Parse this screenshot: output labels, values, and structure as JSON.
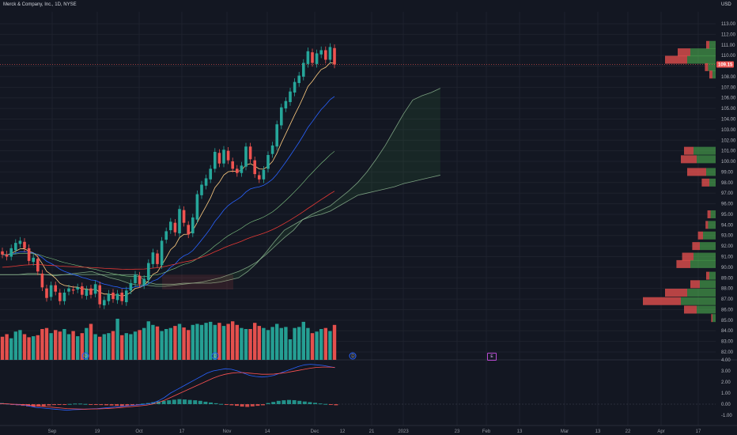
{
  "header": {
    "symbol_title": "Merck & Company, Inc., 1D, NYSE",
    "currency": "USD"
  },
  "price_axis": {
    "labels": [
      "113.00",
      "112.00",
      "111.00",
      "110.00",
      "108.00",
      "107.00",
      "106.00",
      "105.00",
      "104.00",
      "103.00",
      "102.00",
      "101.00",
      "100.00",
      "99.00",
      "98.00",
      "97.00",
      "96.00",
      "95.00",
      "94.00",
      "93.00",
      "92.00",
      "91.00",
      "90.00",
      "89.00",
      "88.00",
      "87.00",
      "86.00",
      "85.00",
      "84.00",
      "83.00",
      "82.00"
    ],
    "current_price": "109.15",
    "current_price_value": 109.15
  },
  "osc_axis": {
    "labels": [
      "4.00",
      "3.00",
      "2.00",
      "1.00",
      "0.00",
      "-1.00"
    ]
  },
  "time_axis": {
    "labels": [
      "Sep",
      "19",
      "Oct",
      "17",
      "Nov",
      "14",
      "Dec",
      "12",
      "21",
      "2023",
      "23",
      "Feb",
      "13",
      "Mar",
      "13",
      "22",
      "Apr",
      "17"
    ]
  },
  "event_badges": {
    "dividend": "D",
    "earnings": "E"
  },
  "colors": {
    "background": "#131722",
    "up": "#26a69a",
    "down": "#ef5350",
    "ema_fast": "#ffcc80",
    "ema_mid": "#2962ff",
    "ema_slow": "#81c784",
    "ma_long": "#e53935",
    "macd": "#2962ff",
    "signal": "#ff5252"
  },
  "chart_data": {
    "type": "candlestick",
    "price_range": [
      81.5,
      113.5
    ],
    "candles": [
      [
        91.5,
        91.2
      ],
      [
        91.2,
        91.0
      ],
      [
        91.0,
        91.8
      ],
      [
        91.6,
        92.3
      ],
      [
        92.2,
        92.5
      ],
      [
        92.4,
        91.8
      ],
      [
        91.8,
        90.6
      ],
      [
        90.5,
        90.9
      ],
      [
        90.8,
        89.6
      ],
      [
        89.4,
        88.1
      ],
      [
        88.0,
        87.1
      ],
      [
        87.2,
        88.3
      ],
      [
        88.3,
        87.7
      ],
      [
        87.6,
        86.8
      ],
      [
        86.8,
        87.6
      ],
      [
        87.7,
        88.0
      ],
      [
        87.9,
        87.8
      ],
      [
        87.9,
        88.1
      ],
      [
        88.2,
        87.4
      ],
      [
        87.3,
        87.9
      ],
      [
        88.0,
        87.4
      ],
      [
        87.5,
        88.4
      ],
      [
        88.3,
        86.5
      ],
      [
        86.4,
        86.9
      ],
      [
        86.8,
        87.5
      ],
      [
        87.6,
        87.0
      ],
      [
        86.9,
        87.5
      ],
      [
        87.6,
        86.8
      ],
      [
        86.7,
        87.8
      ],
      [
        87.8,
        88.5
      ],
      [
        88.5,
        89.3
      ],
      [
        89.2,
        88.4
      ],
      [
        88.3,
        88.9
      ],
      [
        88.8,
        90.4
      ],
      [
        90.3,
        91.4
      ],
      [
        91.3,
        90.3
      ],
      [
        90.2,
        92.5
      ],
      [
        92.6,
        93.4
      ],
      [
        93.5,
        94.3
      ],
      [
        94.2,
        93.3
      ],
      [
        93.2,
        95.5
      ],
      [
        95.4,
        94.2
      ],
      [
        94.0,
        93.1
      ],
      [
        93.2,
        94.7
      ],
      [
        94.5,
        96.9
      ],
      [
        96.8,
        97.8
      ],
      [
        97.7,
        98.4
      ],
      [
        98.3,
        99.3
      ],
      [
        99.3,
        100.9
      ],
      [
        100.8,
        99.8
      ],
      [
        99.8,
        101.1
      ],
      [
        101.0,
        100.1
      ],
      [
        100.0,
        99.3
      ],
      [
        99.3,
        98.9
      ],
      [
        98.9,
        99.6
      ],
      [
        99.5,
        101.4
      ],
      [
        101.4,
        100.2
      ],
      [
        100.1,
        98.8
      ],
      [
        98.7,
        98.3
      ],
      [
        98.3,
        99.2
      ],
      [
        99.3,
        100.6
      ],
      [
        100.7,
        101.5
      ],
      [
        101.4,
        103.5
      ],
      [
        103.4,
        105.1
      ],
      [
        105.0,
        105.7
      ],
      [
        105.6,
        106.6
      ],
      [
        106.5,
        107.5
      ],
      [
        107.4,
        108.1
      ],
      [
        108.0,
        109.3
      ],
      [
        109.2,
        110.4
      ],
      [
        110.3,
        109.3
      ],
      [
        109.2,
        110.2
      ],
      [
        110.1,
        110.5
      ],
      [
        110.5,
        109.6
      ],
      [
        109.6,
        110.8
      ],
      [
        110.7,
        109.15
      ]
    ],
    "volume_relative": [
      0.45,
      0.5,
      0.42,
      0.55,
      0.58,
      0.5,
      0.44,
      0.46,
      0.48,
      0.6,
      0.62,
      0.52,
      0.58,
      0.55,
      0.6,
      0.5,
      0.56,
      0.46,
      0.52,
      0.62,
      0.7,
      0.5,
      0.45,
      0.5,
      0.52,
      0.56,
      0.8,
      0.48,
      0.52,
      0.5,
      0.55,
      0.58,
      0.62,
      0.75,
      0.68,
      0.65,
      0.56,
      0.6,
      0.62,
      0.66,
      0.7,
      0.63,
      0.58,
      0.68,
      0.7,
      0.68,
      0.72,
      0.74,
      0.68,
      0.72,
      0.66,
      0.7,
      0.75,
      0.68,
      0.62,
      0.6,
      0.6,
      0.72,
      0.66,
      0.62,
      0.58,
      0.64,
      0.7,
      0.62,
      0.64,
      0.4,
      0.62,
      0.64,
      0.74,
      0.62,
      0.52,
      0.55,
      0.6,
      0.62,
      0.56,
      0.68
    ],
    "ichimoku": {
      "span_a": [
        89.3,
        89.3,
        89.3,
        89.4,
        89.4,
        89.3,
        89.2,
        89.3,
        89.4,
        89.5,
        89.6,
        89.3,
        89.0,
        88.8,
        88.5,
        88.3,
        88.3,
        88.2,
        88.2,
        88.3,
        88.4,
        88.5,
        88.6,
        88.8,
        89.0,
        89.3,
        89.6,
        90.0,
        90.5,
        91.2,
        92.0,
        92.8,
        93.5,
        94.5,
        95.0,
        95.4,
        95.8,
        96.5,
        97.2,
        98.0,
        99.0,
        100.2,
        101.5,
        103.0,
        104.5,
        105.8,
        106.2,
        106.5,
        106.9
      ],
      "span_b": [
        89.3,
        89.3,
        89.3,
        89.3,
        89.3,
        89.3,
        89.3,
        89.3,
        89.3,
        89.3,
        89.3,
        89.3,
        89.3,
        89.3,
        89.3,
        89.3,
        88.6,
        88.4,
        88.4,
        88.4,
        88.5,
        88.5,
        88.5,
        88.5,
        88.6,
        88.8,
        89.0,
        89.6,
        90.4,
        91.4,
        92.5,
        93.5,
        94.0,
        94.5,
        94.8,
        95.0,
        95.3,
        95.8,
        96.3,
        96.8,
        97.0,
        97.2,
        97.4,
        97.6,
        97.9,
        98.1,
        98.3,
        98.5,
        98.7
      ]
    },
    "macd_values": [
      0.05,
      0.03,
      -0.02,
      -0.05,
      -0.08,
      -0.2,
      -0.3,
      -0.35,
      -0.4,
      -0.45,
      -0.5,
      -0.55,
      -0.5,
      -0.48,
      -0.45,
      -0.42,
      -0.4,
      -0.35,
      -0.3,
      -0.25,
      -0.2,
      -0.15,
      -0.1,
      -0.05,
      0.0,
      0.1,
      0.3,
      0.6,
      1.0,
      1.3,
      1.6,
      1.9,
      2.2,
      2.5,
      2.8,
      3.0,
      3.1,
      3.2,
      3.15,
      3.0,
      2.8,
      2.6,
      2.5,
      2.45,
      2.5,
      2.6,
      2.8,
      3.0,
      3.2,
      3.4,
      3.55,
      3.6,
      3.55,
      3.5,
      3.4,
      3.3
    ],
    "signal_values": [
      0.05,
      0.03,
      0.0,
      -0.02,
      -0.05,
      -0.1,
      -0.15,
      -0.2,
      -0.25,
      -0.3,
      -0.35,
      -0.4,
      -0.42,
      -0.44,
      -0.45,
      -0.44,
      -0.43,
      -0.41,
      -0.38,
      -0.35,
      -0.3,
      -0.25,
      -0.2,
      -0.15,
      -0.1,
      0.0,
      0.15,
      0.35,
      0.6,
      0.85,
      1.1,
      1.35,
      1.6,
      1.85,
      2.1,
      2.35,
      2.55,
      2.7,
      2.8,
      2.85,
      2.85,
      2.8,
      2.75,
      2.7,
      2.7,
      2.72,
      2.78,
      2.85,
      2.95,
      3.05,
      3.15,
      3.25,
      3.32,
      3.35,
      3.35,
      3.32
    ],
    "hist_values": [
      0.1,
      0.05,
      -0.05,
      -0.1,
      -0.15,
      -0.2,
      -0.25,
      -0.22,
      -0.18,
      -0.12,
      -0.08,
      -0.05,
      -0.02,
      0.02,
      0.05,
      0.05,
      0.02,
      -0.02,
      -0.05,
      -0.08,
      -0.1,
      -0.12,
      -0.15,
      -0.18,
      -0.15,
      -0.1,
      -0.05,
      0.05,
      0.1,
      0.18,
      0.25,
      0.3,
      0.35,
      0.4,
      0.45,
      0.42,
      0.38,
      0.35,
      0.3,
      0.22,
      0.15,
      0.08,
      0.02,
      -0.05,
      -0.1,
      -0.15,
      -0.22,
      -0.25,
      -0.2,
      -0.15,
      -0.1,
      0.1,
      0.2,
      0.3,
      0.35,
      0.38,
      0.36,
      0.3,
      0.24,
      0.18,
      0.12,
      0.06,
      0.02,
      -0.05,
      -0.1
    ],
    "volume_profile": [
      {
        "price": 111.0,
        "up": 0.1,
        "down": 0.05
      },
      {
        "price": 110.3,
        "up": 0.4,
        "down": 0.2
      },
      {
        "price": 109.6,
        "up": 0.45,
        "down": 0.35
      },
      {
        "price": 108.9,
        "up": 0.12,
        "down": 0.05
      },
      {
        "price": 108.2,
        "up": 0.05,
        "down": 0.05
      },
      {
        "price": 101.0,
        "up": 0.35,
        "down": 0.15
      },
      {
        "price": 100.2,
        "up": 0.3,
        "down": 0.25
      },
      {
        "price": 99.0,
        "up": 0.15,
        "down": 0.3
      },
      {
        "price": 98.0,
        "up": 0.1,
        "down": 0.12
      },
      {
        "price": 95.0,
        "up": 0.08,
        "down": 0.05
      },
      {
        "price": 94.0,
        "up": 0.12,
        "down": 0.04
      },
      {
        "price": 93.0,
        "up": 0.2,
        "down": 0.08
      },
      {
        "price": 92.0,
        "up": 0.25,
        "down": 0.12
      },
      {
        "price": 91.0,
        "up": 0.35,
        "down": 0.18
      },
      {
        "price": 90.3,
        "up": 0.4,
        "down": 0.22
      },
      {
        "price": 89.2,
        "up": 0.1,
        "down": 0.05
      },
      {
        "price": 88.4,
        "up": 0.25,
        "down": 0.15
      },
      {
        "price": 87.6,
        "up": 0.45,
        "down": 0.35
      },
      {
        "price": 86.8,
        "up": 0.55,
        "down": 0.6
      },
      {
        "price": 86.0,
        "up": 0.3,
        "down": 0.2
      },
      {
        "price": 85.2,
        "up": 0.05,
        "down": 0.02
      }
    ]
  }
}
